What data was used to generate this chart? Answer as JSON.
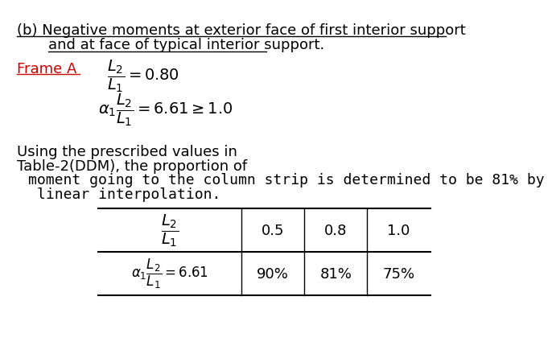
{
  "title_line1": "(b) Negative moments at exterior face of first interior support",
  "title_line2": "and at face of typical interior support.",
  "frame_label": "Frame A",
  "text1": "Using the prescribed values in",
  "text2": "Table-2(DDM), the proportion of",
  "text3": "moment going to the column strip is determined to be 81% by",
  "text4": "linear interpolation.",
  "table_headers": [
    "0.5",
    "0.8",
    "1.0"
  ],
  "table_row1": [
    "90%",
    "81%",
    "75%"
  ],
  "bg_color": "#ffffff",
  "text_color": "#000000",
  "frame_color": "#cc0000",
  "title_fontsize": 13,
  "body_fontsize": 13
}
